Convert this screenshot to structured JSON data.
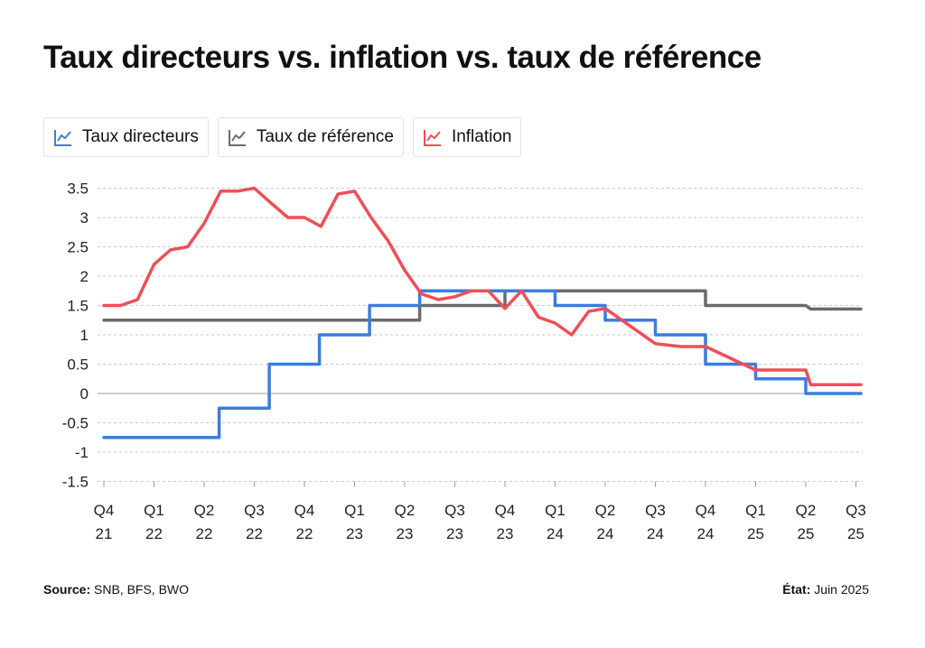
{
  "title": "Taux directeurs vs. inflation vs. taux de référence",
  "legend": [
    {
      "label": "Taux directeurs",
      "color": "#3b7ddd",
      "icon": "line-chart-icon"
    },
    {
      "label": "Taux de référence",
      "color": "#6b6b6b",
      "icon": "line-chart-icon"
    },
    {
      "label": "Inflation",
      "color": "#f04e56",
      "icon": "line-chart-icon"
    }
  ],
  "footer": {
    "source_label": "Source:",
    "source_value": " SNB, BFS, BWO",
    "state_label": "État:",
    "state_value": " Juin 2025"
  },
  "chart_data": {
    "type": "line",
    "title": "Taux directeurs vs. inflation vs. taux de référence",
    "x_ticks": [
      "Q4 21",
      "Q1 22",
      "Q2 22",
      "Q3 22",
      "Q4 22",
      "Q1 23",
      "Q2 23",
      "Q3 23",
      "Q4 23",
      "Q1 24",
      "Q2 24",
      "Q3 24",
      "Q4 24",
      "Q1 25",
      "Q2 25",
      "Q3 25"
    ],
    "x_tick_labels": [
      [
        "Q4",
        "21"
      ],
      [
        "Q1",
        "22"
      ],
      [
        "Q2",
        "22"
      ],
      [
        "Q3",
        "22"
      ],
      [
        "Q4",
        "22"
      ],
      [
        "Q1",
        "23"
      ],
      [
        "Q2",
        "23"
      ],
      [
        "Q3",
        "23"
      ],
      [
        "Q4",
        "23"
      ],
      [
        "Q1",
        "24"
      ],
      [
        "Q2",
        "24"
      ],
      [
        "Q3",
        "24"
      ],
      [
        "Q4",
        "24"
      ],
      [
        "Q1",
        "25"
      ],
      [
        "Q2",
        "25"
      ],
      [
        "Q3",
        "25"
      ]
    ],
    "y_ticks": [
      3.5,
      3,
      2.5,
      2,
      1.5,
      1,
      0.5,
      0,
      -0.5,
      -1,
      -1.5
    ],
    "y_tick_labels": [
      "3.5",
      "3",
      "2.5",
      "2",
      "1.5",
      "1",
      "0.5",
      "0",
      "-0.5",
      "-1",
      "-1.5"
    ],
    "ylim": [
      -1.5,
      3.5
    ],
    "grid": true,
    "legend_position": "top-left",
    "series": [
      {
        "name": "Taux directeurs",
        "color": "#3b7ddd",
        "step": true,
        "points": [
          [
            0,
            -0.75
          ],
          [
            2.3,
            -0.75
          ],
          [
            2.3,
            -0.25
          ],
          [
            3.3,
            -0.25
          ],
          [
            3.3,
            0.5
          ],
          [
            4.3,
            0.5
          ],
          [
            4.3,
            1.0
          ],
          [
            5.3,
            1.0
          ],
          [
            5.3,
            1.5
          ],
          [
            6.3,
            1.5
          ],
          [
            6.3,
            1.75
          ],
          [
            9.0,
            1.75
          ],
          [
            9.0,
            1.5
          ],
          [
            10.0,
            1.5
          ],
          [
            10.0,
            1.25
          ],
          [
            11.0,
            1.25
          ],
          [
            11.0,
            1.0
          ],
          [
            12.0,
            1.0
          ],
          [
            12.0,
            0.5
          ],
          [
            13.0,
            0.5
          ],
          [
            13.0,
            0.25
          ],
          [
            14.0,
            0.25
          ],
          [
            14.0,
            0.0
          ],
          [
            15.1,
            0.0
          ]
        ]
      },
      {
        "name": "Taux de référence",
        "color": "#6b6b6b",
        "step": true,
        "points": [
          [
            0,
            1.25
          ],
          [
            6.3,
            1.25
          ],
          [
            6.3,
            1.5
          ],
          [
            8.0,
            1.5
          ],
          [
            8.0,
            1.75
          ],
          [
            12.0,
            1.75
          ],
          [
            12.0,
            1.5
          ],
          [
            14.0,
            1.5
          ],
          [
            14.1,
            1.44
          ],
          [
            15.1,
            1.44
          ]
        ]
      },
      {
        "name": "Inflation",
        "color": "#f04e56",
        "step": false,
        "points": [
          [
            0,
            1.5
          ],
          [
            0.33,
            1.5
          ],
          [
            0.67,
            1.6
          ],
          [
            1.0,
            2.2
          ],
          [
            1.33,
            2.45
          ],
          [
            1.67,
            2.5
          ],
          [
            2.0,
            2.9
          ],
          [
            2.33,
            3.45
          ],
          [
            2.67,
            3.45
          ],
          [
            3.0,
            3.5
          ],
          [
            3.33,
            3.25
          ],
          [
            3.67,
            3.0
          ],
          [
            4.0,
            3.0
          ],
          [
            4.33,
            2.85
          ],
          [
            4.67,
            3.4
          ],
          [
            5.0,
            3.45
          ],
          [
            5.33,
            3.0
          ],
          [
            5.67,
            2.6
          ],
          [
            6.0,
            2.1
          ],
          [
            6.33,
            1.7
          ],
          [
            6.67,
            1.6
          ],
          [
            7.0,
            1.65
          ],
          [
            7.33,
            1.75
          ],
          [
            7.67,
            1.75
          ],
          [
            8.0,
            1.45
          ],
          [
            8.33,
            1.75
          ],
          [
            8.67,
            1.3
          ],
          [
            9.0,
            1.2
          ],
          [
            9.33,
            1.0
          ],
          [
            9.67,
            1.4
          ],
          [
            10.0,
            1.45
          ],
          [
            10.5,
            1.15
          ],
          [
            11.0,
            0.85
          ],
          [
            11.5,
            0.8
          ],
          [
            12.0,
            0.8
          ],
          [
            12.5,
            0.6
          ],
          [
            13.0,
            0.4
          ],
          [
            13.5,
            0.4
          ],
          [
            14.0,
            0.4
          ],
          [
            14.1,
            0.15
          ],
          [
            15.1,
            0.15
          ]
        ]
      }
    ]
  }
}
